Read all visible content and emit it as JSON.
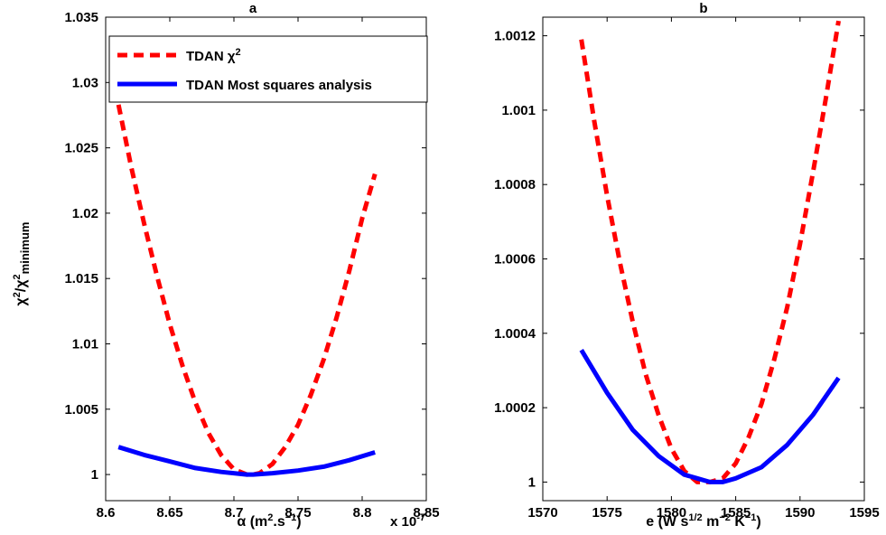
{
  "chart_data": [
    {
      "panel": "a",
      "type": "line",
      "title": "a",
      "xlabel": "α (m².s⁻¹)",
      "ylabel": "χ²/χ²minimum",
      "x_multiplier": "x 10",
      "x_multiplier_exponent": "-7",
      "xlim": [
        8.6,
        8.85
      ],
      "ylim": [
        0.998,
        1.035
      ],
      "xticks": [
        "8.6",
        "8.65",
        "8.7",
        "8.75",
        "8.8",
        "8.85"
      ],
      "xtick_values": [
        8.6,
        8.65,
        8.7,
        8.75,
        8.8,
        8.85
      ],
      "yticks": [
        "1",
        "1.005",
        "1.01",
        "1.015",
        "1.02",
        "1.025",
        "1.03",
        "1.035"
      ],
      "ytick_values": [
        1,
        1.005,
        1.01,
        1.015,
        1.02,
        1.025,
        1.03,
        1.035
      ],
      "legend_position": "top-left",
      "legend": [
        "TDAN χ²",
        "TDAN Most squares analysis"
      ],
      "series": [
        {
          "name": "TDAN χ²",
          "color": "#ff0000",
          "style": "dashed",
          "x": [
            8.61,
            8.62,
            8.63,
            8.64,
            8.65,
            8.66,
            8.67,
            8.68,
            8.69,
            8.7,
            8.71,
            8.715,
            8.72,
            8.73,
            8.74,
            8.75,
            8.76,
            8.77,
            8.78,
            8.79,
            8.8,
            8.81
          ],
          "y": [
            1.0283,
            1.0235,
            1.0192,
            1.0152,
            1.0115,
            1.0083,
            1.0055,
            1.0032,
            1.0015,
            1.0004,
            1.0,
            1.0,
            1.0001,
            1.0008,
            1.0021,
            1.0038,
            1.0061,
            1.0088,
            1.012,
            1.0156,
            1.0196,
            1.023
          ]
        },
        {
          "name": "TDAN Most squares analysis",
          "color": "#0000ff",
          "style": "solid",
          "x": [
            8.61,
            8.63,
            8.65,
            8.67,
            8.69,
            8.71,
            8.715,
            8.73,
            8.75,
            8.77,
            8.79,
            8.81
          ],
          "y": [
            1.0021,
            1.0015,
            1.001,
            1.0005,
            1.0002,
            1.0,
            1.0,
            1.0001,
            1.0003,
            1.0006,
            1.0011,
            1.0017
          ]
        }
      ]
    },
    {
      "panel": "b",
      "type": "line",
      "title": "b",
      "xlabel": "e (W s^1/2 m^-2 K^-1)",
      "xlim": [
        1570,
        1595
      ],
      "ylim": [
        0.99995,
        1.00125
      ],
      "xticks": [
        "1570",
        "1575",
        "1580",
        "1585",
        "1590",
        "1595"
      ],
      "xtick_values": [
        1570,
        1575,
        1580,
        1585,
        1590,
        1595
      ],
      "yticks": [
        "1",
        "1.0002",
        "1.0004",
        "1.0006",
        "1.0008",
        "1.001",
        "1.0012"
      ],
      "ytick_values": [
        1,
        1.0002,
        1.0004,
        1.0006,
        1.0008,
        1.001,
        1.0012
      ],
      "series": [
        {
          "name": "TDAN χ²",
          "color": "#ff0000",
          "style": "dashed",
          "x": [
            1573,
            1574,
            1575,
            1576,
            1577,
            1578,
            1579,
            1580,
            1581,
            1582,
            1583,
            1584,
            1585,
            1586,
            1587,
            1588,
            1589,
            1590,
            1591,
            1592,
            1593
          ],
          "y": [
            1.00119,
            1.00097,
            1.00077,
            1.00059,
            1.00043,
            1.00029,
            1.00018,
            1.00009,
            1.00003,
            1.0,
            1.0,
            1.00001,
            1.00005,
            1.00012,
            1.00021,
            1.00033,
            1.00047,
            1.00064,
            1.00083,
            1.00103,
            1.00124
          ]
        },
        {
          "name": "TDAN Most squares analysis",
          "color": "#0000ff",
          "style": "solid",
          "x": [
            1573,
            1575,
            1577,
            1579,
            1581,
            1582,
            1583,
            1583.5,
            1584,
            1585,
            1587,
            1589,
            1591,
            1593
          ],
          "y": [
            1.000355,
            1.00024,
            1.00014,
            1.00007,
            1.00002,
            1.00001,
            1.0,
            1.0,
            1.0,
            1.00001,
            1.00004,
            1.0001,
            1.00018,
            1.00028
          ]
        }
      ]
    }
  ]
}
